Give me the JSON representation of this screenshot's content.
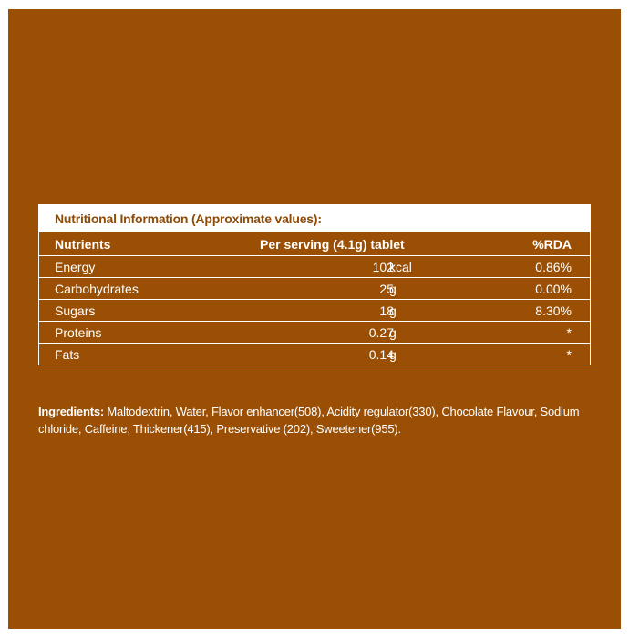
{
  "colors": {
    "background": "#9a4f05",
    "text": "#ffffff",
    "title_text": "#8f4a06"
  },
  "table": {
    "title": "Nutritional Information (Approximate values):",
    "headers": {
      "nutrients": "Nutrients",
      "serving": "Per serving (4.1g) tablet",
      "rda": "%RDA"
    },
    "rows": [
      {
        "name": "Energy",
        "qty": "102",
        "unit": "kcal",
        "rda": "0.86%"
      },
      {
        "name": "Carbohydrates",
        "qty": "25",
        "unit": "g",
        "rda": "0.00%"
      },
      {
        "name": "Sugars",
        "qty": "18",
        "unit": "g",
        "rda": "8.30%"
      },
      {
        "name": "Proteins",
        "qty": "0.27",
        "unit": "g",
        "rda": "*"
      },
      {
        "name": "Fats",
        "qty": "0.14",
        "unit": "g",
        "rda": "*"
      }
    ]
  },
  "ingredients": {
    "label": "Ingredients:",
    "text": " Maltodextrin, Water, Flavor enhancer(508), Acidity regulator(330), Chocolate Flavour, Sodium chloride, Caffeine, Thickener(415), Preservative (202), Sweetener(955)."
  }
}
